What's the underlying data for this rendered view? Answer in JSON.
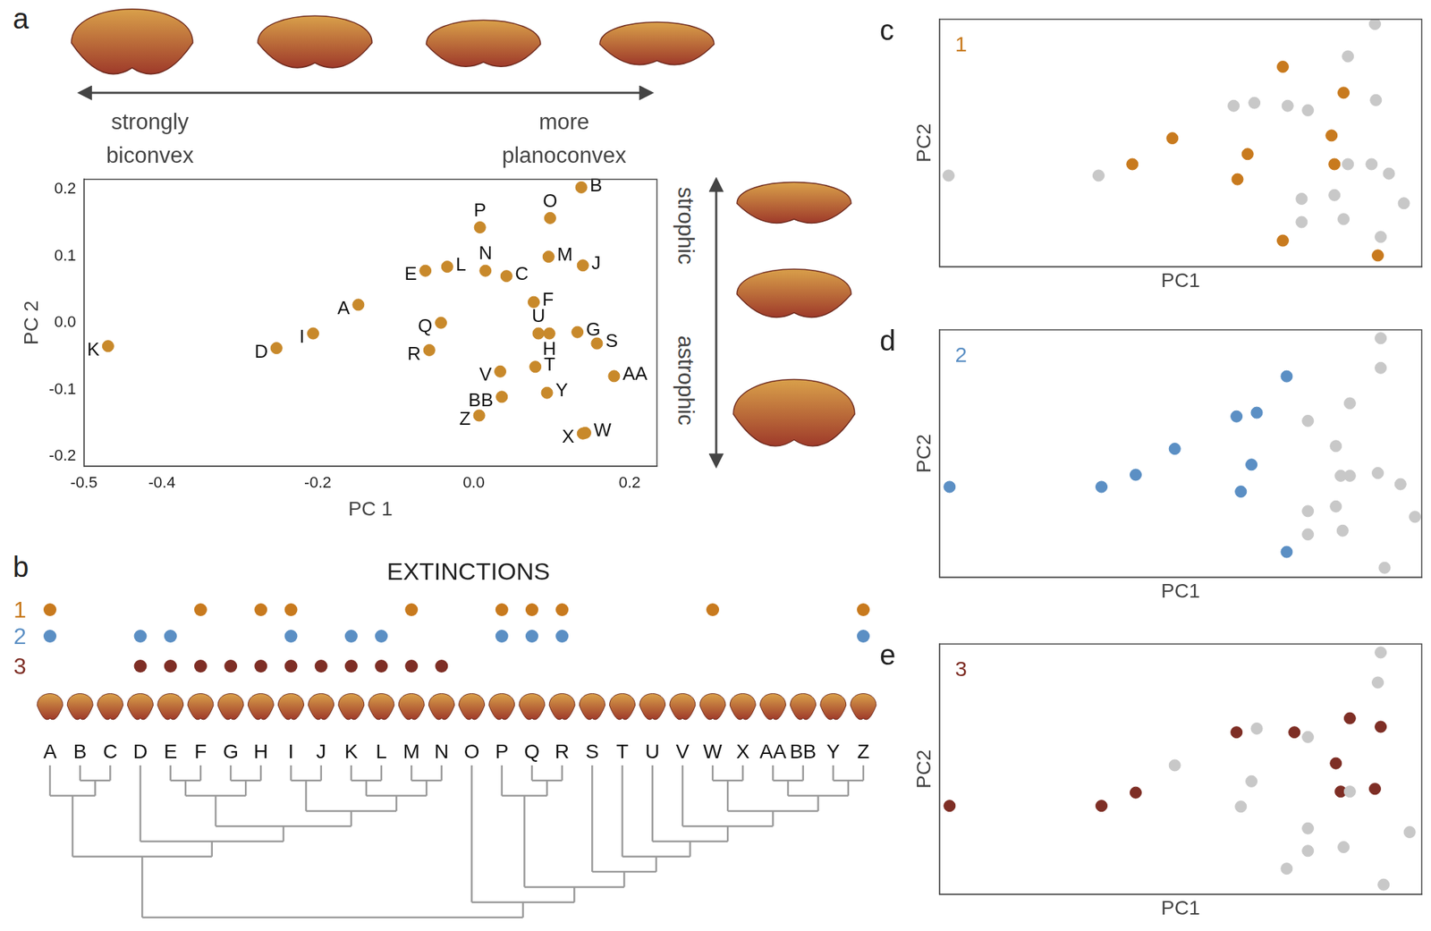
{
  "chart_data": [
    {
      "type": "scatter",
      "x_label": "PC 1",
      "y_label": "PC 2",
      "annotations": [
        "a",
        "strongly biconvex",
        "more planoconvex",
        "strophic",
        "astrophic"
      ],
      "xlim": [
        -0.5,
        0.235
      ],
      "ylim": [
        -0.215,
        0.215
      ],
      "xticks": [
        -0.5,
        -0.4,
        -0.2,
        {
          "value": 0,
          "label": "0.0"
        },
        0.2
      ],
      "yticks": [
        -0.2,
        -0.1,
        {
          "value": 0,
          "label": "0.0"
        },
        0.1,
        0.2
      ],
      "grid": false,
      "series": [
        {
          "color": "#c8892b",
          "marker": "circle",
          "labels": [
            "A",
            "B",
            "C",
            "D",
            "E",
            "F",
            "G",
            "H",
            "I",
            "J",
            "K",
            "L",
            "M",
            "N",
            "O",
            "P",
            "Q",
            "R",
            "S",
            "T",
            "U",
            "V",
            "W",
            "X",
            "Y",
            "Z",
            "AA",
            "BB"
          ],
          "x": [
            -0.148,
            0.138,
            0.042,
            -0.253,
            -0.062,
            0.077,
            0.133,
            0.097,
            -0.206,
            0.14,
            -0.469,
            -0.034,
            0.096,
            0.015,
            0.098,
            0.008,
            -0.042,
            -0.057,
            0.158,
            0.079,
            0.083,
            0.034,
            0.143,
            0.14,
            0.094,
            0.007,
            0.18,
            0.036
          ],
          "y": [
            0.027,
            0.203,
            0.07,
            -0.038,
            0.078,
            0.031,
            -0.014,
            -0.016,
            -0.016,
            0.086,
            -0.035,
            0.084,
            0.099,
            0.078,
            0.157,
            0.143,
            0.0,
            -0.041,
            -0.031,
            -0.066,
            -0.016,
            -0.073,
            -0.165,
            -0.166,
            -0.105,
            -0.139,
            -0.08,
            -0.111
          ]
        }
      ]
    },
    {
      "type": "scatter",
      "x_label": "PC1",
      "y_label": "PC2",
      "annotations": [
        "c",
        "1"
      ],
      "xlim": [
        0,
        1
      ],
      "ylim": [
        0,
        1
      ],
      "tick_labels": false,
      "grid": false,
      "series": [
        {
          "color": "#c8c8c8",
          "marker": "circle",
          "x": [
            0.019,
            0.33,
            0.61,
            0.653,
            0.722,
            0.764,
            0.847,
            0.903,
            0.905,
            0.847,
            0.896,
            0.932,
            0.963,
            0.819,
            0.751,
            0.751,
            0.838,
            0.915
          ],
          "y": [
            0.368,
            0.368,
            0.65,
            0.662,
            0.65,
            0.632,
            0.85,
            0.981,
            0.673,
            0.414,
            0.414,
            0.376,
            0.256,
            0.289,
            0.274,
            0.18,
            0.192,
            0.12
          ]
        },
        {
          "color": "#c87a1e",
          "marker": "circle",
          "x": [
            0.712,
            0.838,
            0.483,
            0.639,
            0.813,
            0.4,
            0.819,
            0.618,
            0.712,
            0.909
          ],
          "y": [
            0.808,
            0.703,
            0.519,
            0.455,
            0.53,
            0.414,
            0.414,
            0.353,
            0.105,
            0.045
          ]
        }
      ]
    },
    {
      "type": "scatter",
      "x_label": "PC1",
      "y_label": "PC2",
      "annotations": [
        "d",
        "2"
      ],
      "xlim": [
        0,
        1
      ],
      "ylim": [
        0,
        1
      ],
      "tick_labels": false,
      "grid": false,
      "series": [
        {
          "color": "#c8c8c8",
          "marker": "circle",
          "x": [
            0.915,
            0.915,
            0.851,
            0.764,
            0.822,
            0.832,
            0.851,
            0.909,
            0.956,
            0.822,
            0.836,
            0.764,
            0.764,
            0.923,
            0.986
          ],
          "y": [
            0.966,
            0.846,
            0.703,
            0.632,
            0.53,
            0.41,
            0.41,
            0.421,
            0.376,
            0.286,
            0.188,
            0.267,
            0.173,
            0.038,
            0.244
          ]
        },
        {
          "color": "#5b8fc4",
          "marker": "circle",
          "x": [
            0.021,
            0.336,
            0.407,
            0.488,
            0.616,
            0.658,
            0.72,
            0.647,
            0.625,
            0.72
          ],
          "y": [
            0.365,
            0.365,
            0.414,
            0.519,
            0.65,
            0.665,
            0.812,
            0.455,
            0.346,
            0.102
          ]
        }
      ]
    },
    {
      "type": "scatter",
      "x_label": "PC1",
      "y_label": "PC2",
      "annotations": [
        "e",
        "3"
      ],
      "xlim": [
        0,
        1
      ],
      "ylim": [
        0,
        1
      ],
      "tick_labels": false,
      "grid": false,
      "series": [
        {
          "color": "#c8c8c8",
          "marker": "circle",
          "x": [
            0.915,
            0.909,
            0.658,
            0.488,
            0.764,
            0.625,
            0.647,
            0.851,
            0.975,
            0.764,
            0.764,
            0.838,
            0.72,
            0.921
          ],
          "y": [
            0.966,
            0.846,
            0.662,
            0.515,
            0.628,
            0.35,
            0.451,
            0.41,
            0.248,
            0.263,
            0.173,
            0.188,
            0.102,
            0.038
          ]
        },
        {
          "color": "#7e2e25",
          "marker": "circle",
          "x": [
            0.021,
            0.336,
            0.407,
            0.616,
            0.736,
            0.851,
            0.915,
            0.822,
            0.832,
            0.903
          ],
          "y": [
            0.353,
            0.353,
            0.406,
            0.647,
            0.647,
            0.703,
            0.669,
            0.523,
            0.41,
            0.421
          ]
        }
      ]
    }
  ],
  "panel_b": {
    "panel": "b",
    "title": "EXTINCTIONS",
    "leaves": [
      "A",
      "B",
      "C",
      "D",
      "E",
      "F",
      "G",
      "H",
      "I",
      "J",
      "K",
      "L",
      "M",
      "N",
      "O",
      "P",
      "Q",
      "R",
      "S",
      "T",
      "U",
      "V",
      "W",
      "X",
      "AA",
      "BB",
      "Y",
      "Z"
    ],
    "rows": [
      {
        "label": "1",
        "color": "#c87a1e",
        "extinct": [
          "A",
          "F",
          "H",
          "I",
          "M",
          "P",
          "Q",
          "R",
          "W",
          "Z"
        ]
      },
      {
        "label": "2",
        "color": "#5b8fc4",
        "extinct": [
          "A",
          "D",
          "E",
          "I",
          "K",
          "L",
          "P",
          "Q",
          "R",
          "Z"
        ]
      },
      {
        "label": "3",
        "color": "#7e2e25",
        "extinct": [
          "D",
          "E",
          "F",
          "G",
          "H",
          "I",
          "J",
          "K",
          "L",
          "M",
          "N"
        ]
      }
    ],
    "tree": [
      [
        [
          "A",
          [
            "B",
            "C"
          ]
        ],
        [
          "D",
          [
            [
              [
                "E",
                "F"
              ],
              [
                "G",
                "H"
              ]
            ],
            [
              [
                "I",
                "J"
              ],
              [
                [
                  "K",
                  "L"
                ],
                [
                  "M",
                  "N"
                ]
              ]
            ]
          ]
        ]
      ],
      [
        "O",
        [
          [
            "P",
            [
              "Q",
              "R"
            ]
          ],
          [
            "S",
            [
              "T",
              [
                "U",
                [
                  "V",
                  [
                    [
                      "W",
                      "X"
                    ],
                    [
                      [
                        "AA",
                        "BB"
                      ],
                      [
                        "Y",
                        "Z"
                      ]
                    ]
                  ]
                ]
              ]
            ]
          ]
        ]
      ]
    ]
  }
}
